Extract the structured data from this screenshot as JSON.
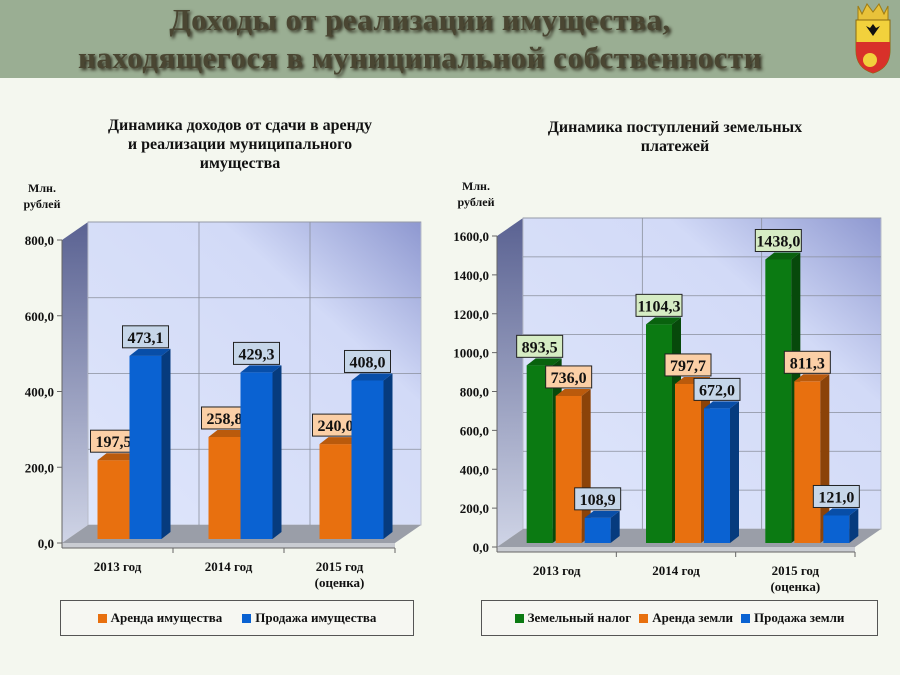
{
  "header": {
    "title_line1": "Доходы от реализации имущества,",
    "title_line2": "находящегося в муниципальной собственности",
    "emblem": "coat-of-arms"
  },
  "chart_data": [
    {
      "type": "bar",
      "title": "Динамика доходов от сдачи в аренду и реализации муниципального имущества",
      "title_lines": [
        "Динамика доходов от сдачи в аренду",
        "и реализации муниципального",
        "имущества"
      ],
      "ylabel_lines": [
        "Млн.",
        "рублей"
      ],
      "ylim": [
        0,
        800
      ],
      "yticks": [
        "0,0",
        "200,0",
        "400,0",
        "600,0",
        "800,0"
      ],
      "categories": [
        [
          "2013 год"
        ],
        [
          "2014 год"
        ],
        [
          "2015 год",
          "(оценка)"
        ]
      ],
      "series": [
        {
          "name": "Аренда имущества",
          "color": "#e8700f",
          "label_bg": "#fbcfa6",
          "values": [
            197.5,
            258.8,
            240.0
          ],
          "labels": [
            "197,5",
            "258,8",
            "240,0"
          ]
        },
        {
          "name": "Продажа имущества",
          "color": "#0a62d2",
          "label_bg": "#c6d6e9",
          "values": [
            473.1,
            429.3,
            408.0
          ],
          "labels": [
            "473,1",
            "429,3",
            "408,0"
          ]
        }
      ],
      "grid": true,
      "legend": "bottom"
    },
    {
      "type": "bar",
      "title": "Динамика поступлений земельных платежей",
      "title_lines": [
        "Динамика поступлений земельных",
        "платежей"
      ],
      "ylabel_lines": [
        "Млн.",
        "рублей"
      ],
      "ylim": [
        0,
        1600
      ],
      "yticks": [
        "0,0",
        "200,0",
        "400,0",
        "600,0",
        "800,0",
        "1000,0",
        "1200,0",
        "1400,0",
        "1600,0"
      ],
      "categories": [
        [
          "2013 год"
        ],
        [
          "2014 год"
        ],
        [
          "2015 год",
          "(оценка)"
        ]
      ],
      "series": [
        {
          "name": "Земельный налог",
          "color": "#0b7a12",
          "label_bg": "#d6ecc4",
          "values": [
            893.5,
            1104.3,
            1438.0
          ],
          "labels": [
            "893,5",
            "1104,3",
            "1438,0"
          ]
        },
        {
          "name": "Аренда земли",
          "color": "#e8700f",
          "label_bg": "#fbcfa6",
          "values": [
            736.0,
            797.7,
            811.3
          ],
          "labels": [
            "736,0",
            "797,7",
            "811,3"
          ]
        },
        {
          "name": "Продажа земли",
          "color": "#0a62d2",
          "label_bg": "#c6d6e9",
          "values": [
            108.9,
            672.0,
            121.0
          ],
          "labels": [
            "108,9",
            "672,0",
            "121,0"
          ]
        }
      ],
      "grid": true,
      "legend": "bottom"
    }
  ]
}
